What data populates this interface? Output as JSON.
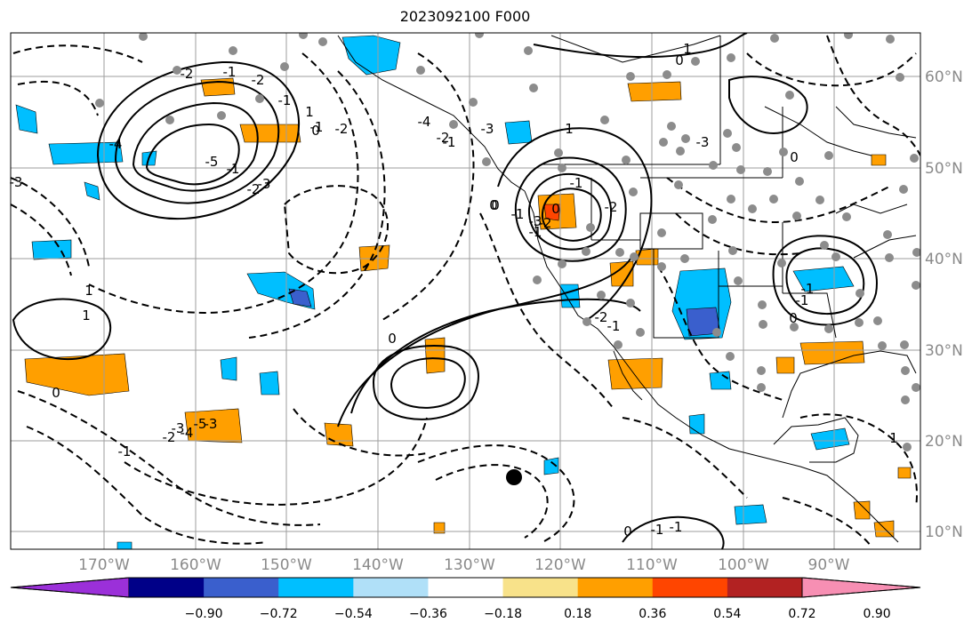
{
  "title": "2023092100 F000",
  "map": {
    "lon_labels": [
      "170°W",
      "160°W",
      "150°W",
      "140°W",
      "130°W",
      "120°W",
      "110°W",
      "100°W",
      "90°W"
    ],
    "lat_labels": [
      "60°N",
      "50°N",
      "40°N",
      "30°N",
      "20°N",
      "10°N"
    ],
    "contour_labels": [
      "-2",
      "-1",
      "-3",
      "-4",
      "-5",
      "-2",
      "-1",
      "0",
      "1",
      "-4",
      "-3",
      "-2",
      "-1",
      "0",
      "-1",
      "-2",
      "-1",
      "0",
      "1",
      "-1",
      "-2",
      "-2",
      "-1",
      "-3",
      "1",
      "0",
      "-1",
      "0",
      "-1",
      "-3",
      "-5",
      "-4",
      "-3",
      "-2",
      "-1",
      "-1",
      "-2",
      "-3",
      "-1",
      "0",
      "-2",
      "-3",
      "0",
      "0",
      "1",
      "1",
      "0",
      "-1",
      "-1",
      "0",
      "1"
    ],
    "colors": {
      "contour": "#000000",
      "grid": "#9e9e9e",
      "coast": "#000000",
      "station_dot": "#8c8c8c",
      "center_dot": "#000000",
      "tick_label": "#8a8a8a"
    }
  },
  "colorbar": {
    "ticks": [
      "−0.90",
      "−0.72",
      "−0.54",
      "−0.36",
      "−0.18",
      "0.18",
      "0.36",
      "0.54",
      "0.72",
      "0.90"
    ],
    "colors": [
      "#9b30d9",
      "#000088",
      "#3a5fcd",
      "#00bfff",
      "#b0e0f8",
      "#ffffff",
      "#f8e28a",
      "#ff9f00",
      "#ff4500",
      "#b22222",
      "#f78fb3"
    ],
    "extend": "both"
  }
}
